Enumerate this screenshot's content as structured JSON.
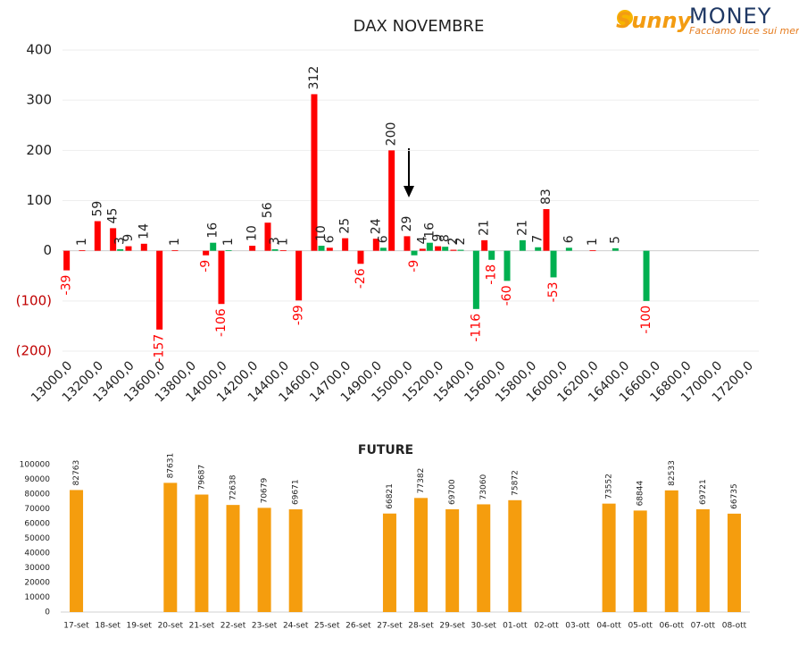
{
  "logo": {
    "brand": "Sunny",
    "name": "MONEY",
    "tagline": "Facciamo luce sui mercati"
  },
  "chart_data": [
    {
      "type": "bar",
      "title": "DAX NOVEMBRE",
      "categories": [
        "13000,0",
        null,
        "13200,0",
        null,
        "13400,0",
        null,
        "13600,0",
        null,
        "13800,0",
        null,
        "14000,0",
        null,
        "14200,0",
        null,
        "14400,0",
        null,
        "14600,0",
        null,
        "14700,0",
        null,
        "14900,0",
        null,
        "15000,0",
        null,
        "15200,0",
        null,
        "15400,0",
        null,
        "15600,0",
        null,
        "15800,0",
        null,
        "16000,0",
        null,
        "16200,0",
        null,
        "16400,0",
        null,
        "16600,0",
        null,
        "16800,0",
        null,
        "17000,0",
        null,
        "17200,0"
      ],
      "series": [
        {
          "color": "#ff0000",
          "values": [
            -39,
            1,
            59,
            45,
            9,
            14,
            -157,
            1,
            null,
            -9,
            -106,
            null,
            10,
            56,
            1,
            -99,
            312,
            6,
            25,
            -26,
            24,
            200,
            29,
            4,
            9,
            2,
            null,
            21,
            null,
            null,
            null,
            83,
            null,
            null,
            1,
            null,
            null,
            null,
            null,
            null,
            null,
            null,
            null,
            null,
            null
          ]
        },
        {
          "color": "#00b050",
          "values": [
            null,
            null,
            null,
            3,
            null,
            null,
            null,
            null,
            null,
            16,
            1,
            null,
            null,
            3,
            null,
            null,
            10,
            null,
            null,
            null,
            6,
            null,
            -9,
            16,
            8,
            2,
            -116,
            -18,
            -60,
            21,
            7,
            -53,
            6,
            null,
            null,
            5,
            null,
            -100,
            null,
            null,
            null,
            null,
            null,
            null,
            null
          ]
        }
      ],
      "ylim": [
        -200,
        400
      ],
      "yticks": [
        {
          "value": -200,
          "label": "(200)"
        },
        {
          "value": -100,
          "label": "(100)"
        },
        0,
        100,
        200,
        300,
        400
      ],
      "grid": true
    },
    {
      "type": "bar",
      "title": "FUTURE",
      "categories": [
        "17-set",
        "18-set",
        "19-set",
        "20-set",
        "21-set",
        "22-set",
        "23-set",
        "24-set",
        "25-set",
        "26-set",
        "27-set",
        "28-set",
        "29-set",
        "30-set",
        "01-ott",
        "02-ott",
        "03-ott",
        "04-ott",
        "05-ott",
        "06-ott",
        "07-ott",
        "08-ott"
      ],
      "series": [
        {
          "color": "#f59d0e",
          "values": [
            82763,
            null,
            null,
            87631,
            79687,
            72638,
            70679,
            69671,
            null,
            null,
            66821,
            77382,
            69700,
            73060,
            75872,
            null,
            null,
            73552,
            68844,
            82533,
            69721,
            66735
          ]
        }
      ],
      "ylim": [
        0,
        100000
      ],
      "yticks": [
        0,
        10000,
        20000,
        30000,
        40000,
        50000,
        60000,
        70000,
        80000,
        90000,
        100000
      ],
      "grid": false
    }
  ]
}
